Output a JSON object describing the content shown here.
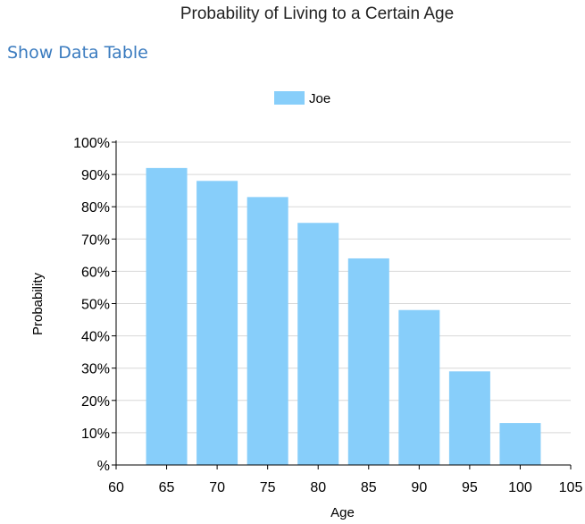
{
  "page": {
    "title": "Probability of Living to a Certain Age",
    "show_data_table_link": "Show Data Table"
  },
  "chart_data": {
    "type": "bar",
    "title": "",
    "xlabel": "Age",
    "ylabel": "Probability",
    "legend_position": "top-center",
    "series": [
      {
        "name": "Joe",
        "color": "#87cefa",
        "x": [
          65,
          70,
          75,
          80,
          85,
          90,
          95,
          100
        ],
        "values": [
          92,
          88,
          83,
          75,
          64,
          48,
          29,
          13
        ]
      }
    ],
    "xlim": [
      60,
      105
    ],
    "x_ticks": [
      60,
      65,
      70,
      75,
      80,
      85,
      90,
      95,
      100,
      105
    ],
    "x_tick_labels": [
      "60",
      "65",
      "70",
      "75",
      "80",
      "85",
      "90",
      "95",
      "100",
      "105"
    ],
    "ylim": [
      0,
      100
    ],
    "y_ticks": [
      0,
      10,
      20,
      30,
      40,
      50,
      60,
      70,
      80,
      90,
      100
    ],
    "y_tick_labels": [
      "%",
      "10%",
      "20%",
      "30%",
      "40%",
      "50%",
      "60%",
      "70%",
      "80%",
      "90%",
      "100%"
    ],
    "grid": "horizontal"
  }
}
